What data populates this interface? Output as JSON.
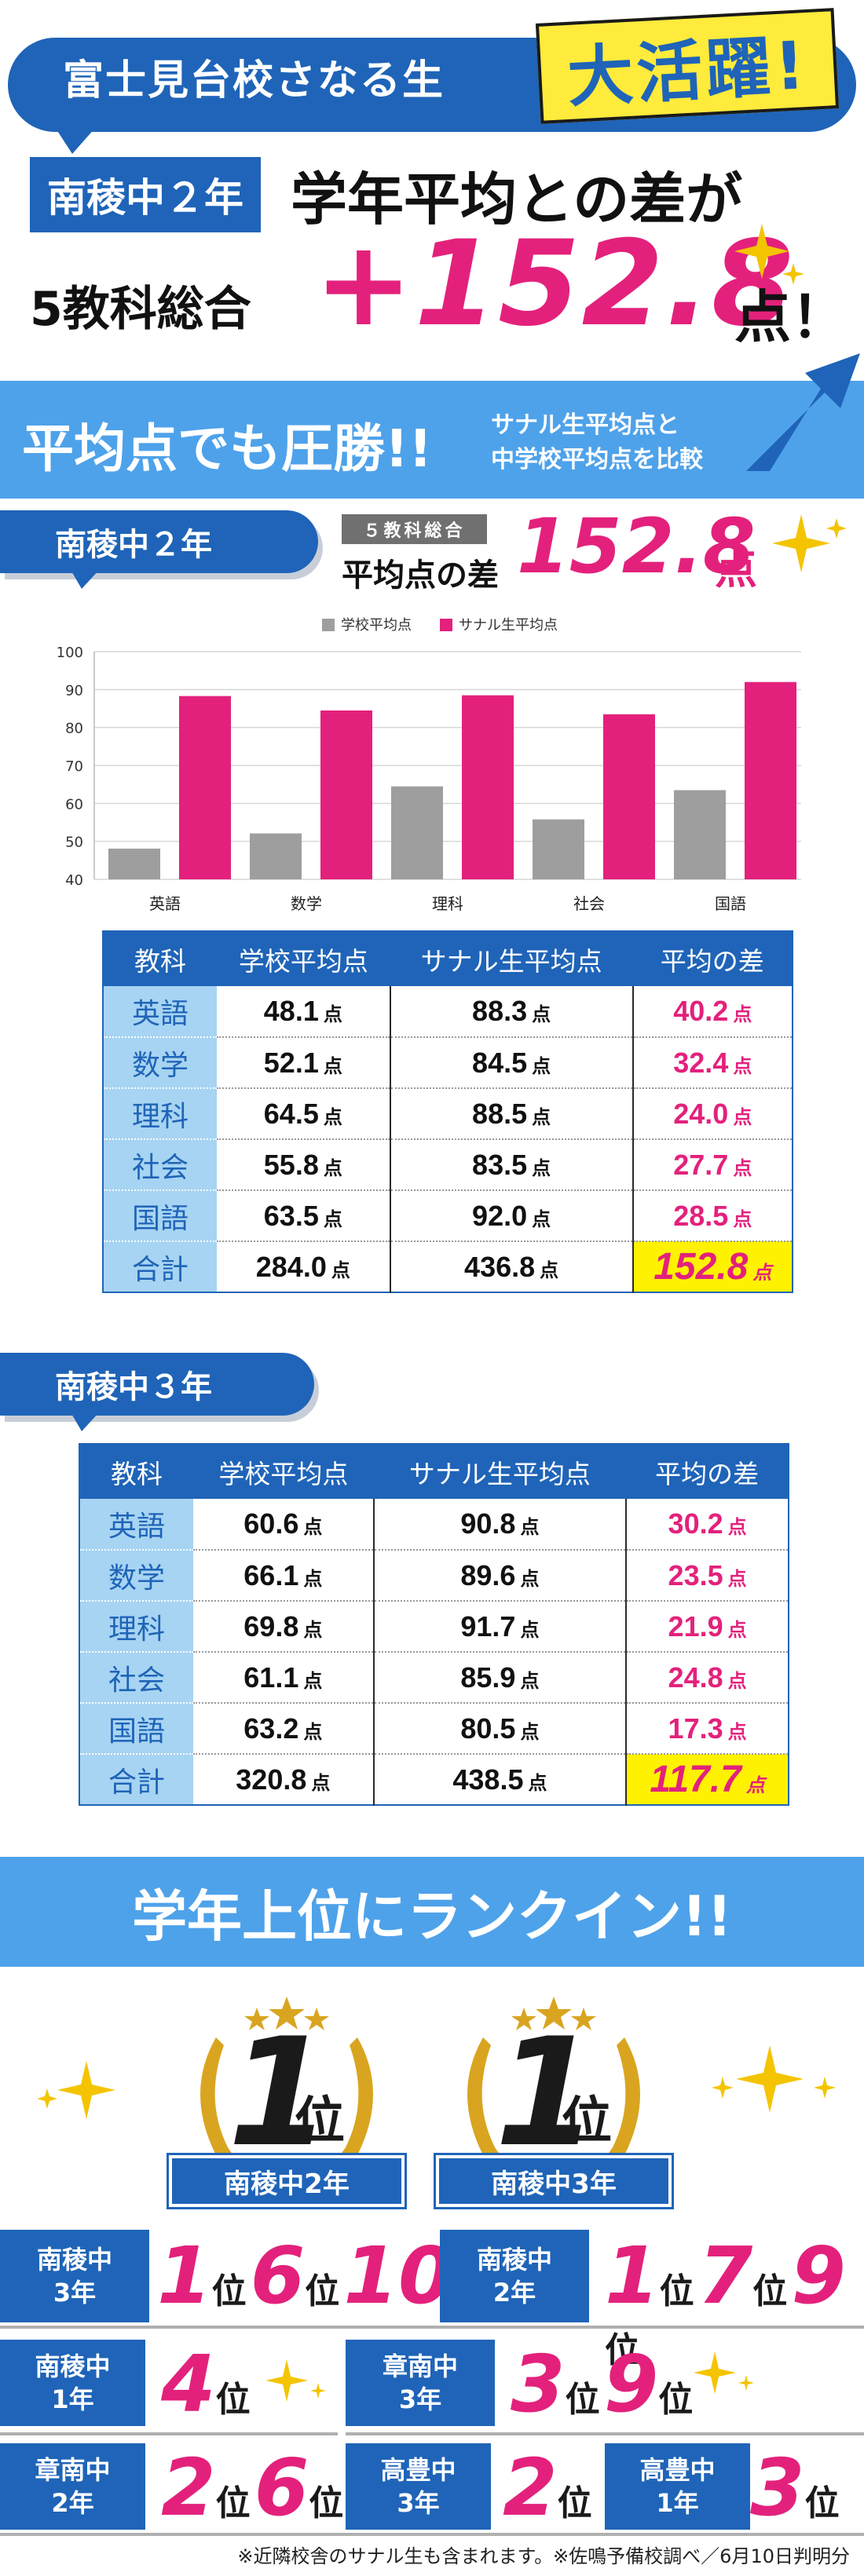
{
  "header": {
    "line1": "富士見台校さなる生",
    "line1_big": "大活躍!",
    "school": "南稜中２年",
    "line2": "学年平均との差が",
    "line3_left": "5教科総合",
    "line3_value": "+152.8",
    "line3_right": "点！"
  },
  "banner": {
    "title": "平均点でも圧勝!!",
    "sub1": "サナル生平均点と",
    "sub2": "中学校平均点を比較"
  },
  "section1": {
    "tag": "南稜中２年",
    "box_label": "５教科総合",
    "diff_label": "平均点の差",
    "diff_value": "152.8",
    "diff_unit": "点"
  },
  "chart_data": {
    "type": "bar",
    "categories": [
      "英語",
      "数学",
      "理科",
      "社会",
      "国語"
    ],
    "series": [
      {
        "name": "学校平均点",
        "values": [
          48.1,
          52.1,
          64.5,
          55.8,
          63.5
        ],
        "color": "#9e9e9e"
      },
      {
        "name": "サナル生平均点",
        "values": [
          88.3,
          84.5,
          88.5,
          83.5,
          92.0
        ],
        "color": "#e3217c"
      }
    ],
    "ylim": [
      40,
      100
    ],
    "yticks": [
      "40",
      "50",
      "60",
      "70",
      "80",
      "90",
      "100"
    ],
    "grid": true,
    "legend": "top-center"
  },
  "table_headers": [
    "教科",
    "学校平均点",
    "サナル生平均点",
    "平均の差"
  ],
  "unit": "点",
  "table1": {
    "rows": [
      {
        "subject": "英語",
        "school": "48.1",
        "sanaru": "88.3",
        "diff": "40.2"
      },
      {
        "subject": "数学",
        "school": "52.1",
        "sanaru": "84.5",
        "diff": "32.4"
      },
      {
        "subject": "理科",
        "school": "64.5",
        "sanaru": "88.5",
        "diff": "24.0"
      },
      {
        "subject": "社会",
        "school": "55.8",
        "sanaru": "83.5",
        "diff": "27.7"
      },
      {
        "subject": "国語",
        "school": "63.5",
        "sanaru": "92.0",
        "diff": "28.5"
      }
    ],
    "total": {
      "subject": "合計",
      "school": "284.0",
      "sanaru": "436.8",
      "diff": "152.8"
    }
  },
  "section2": {
    "tag": "南稜中３年"
  },
  "table2": {
    "rows": [
      {
        "subject": "英語",
        "school": "60.6",
        "sanaru": "90.8",
        "diff": "30.2"
      },
      {
        "subject": "数学",
        "school": "66.1",
        "sanaru": "89.6",
        "diff": "23.5"
      },
      {
        "subject": "理科",
        "school": "69.8",
        "sanaru": "91.7",
        "diff": "21.9"
      },
      {
        "subject": "社会",
        "school": "61.1",
        "sanaru": "85.9",
        "diff": "24.8"
      },
      {
        "subject": "国語",
        "school": "63.2",
        "sanaru": "80.5",
        "diff": "17.3"
      }
    ],
    "total": {
      "subject": "合計",
      "school": "320.8",
      "sanaru": "438.5",
      "diff": "117.7"
    }
  },
  "ranking": {
    "title": "学年上位にランクイン!!",
    "pos_label": "位",
    "first": [
      {
        "num": "1",
        "label": "南稜中2年"
      },
      {
        "num": "1",
        "label": "南稜中3年"
      }
    ],
    "rows": [
      {
        "school_line1": "南稜中",
        "school_line2": "3年",
        "ranks": [
          "1",
          "6",
          "10"
        ]
      },
      {
        "school_line1": "南稜中",
        "school_line2": "2年",
        "ranks": [
          "1",
          "7",
          "9"
        ]
      },
      {
        "school_line1": "南稜中",
        "school_line2": "1年",
        "ranks": [
          "4"
        ]
      },
      {
        "school_line1": "章南中",
        "school_line2": "3年",
        "ranks": [
          "3",
          "9"
        ]
      },
      {
        "school_line1": "章南中",
        "school_line2": "2年",
        "ranks": [
          "2",
          "6"
        ]
      },
      {
        "school_line1": "高豊中",
        "school_line2": "3年",
        "ranks": [
          "2"
        ]
      },
      {
        "school_line1": "高豊中",
        "school_line2": "1年",
        "ranks": [
          "3"
        ]
      }
    ]
  },
  "footnote": "※近隣校舎のサナル生も含まれます。※佐鳴予備校調べ／6月10日判明分"
}
